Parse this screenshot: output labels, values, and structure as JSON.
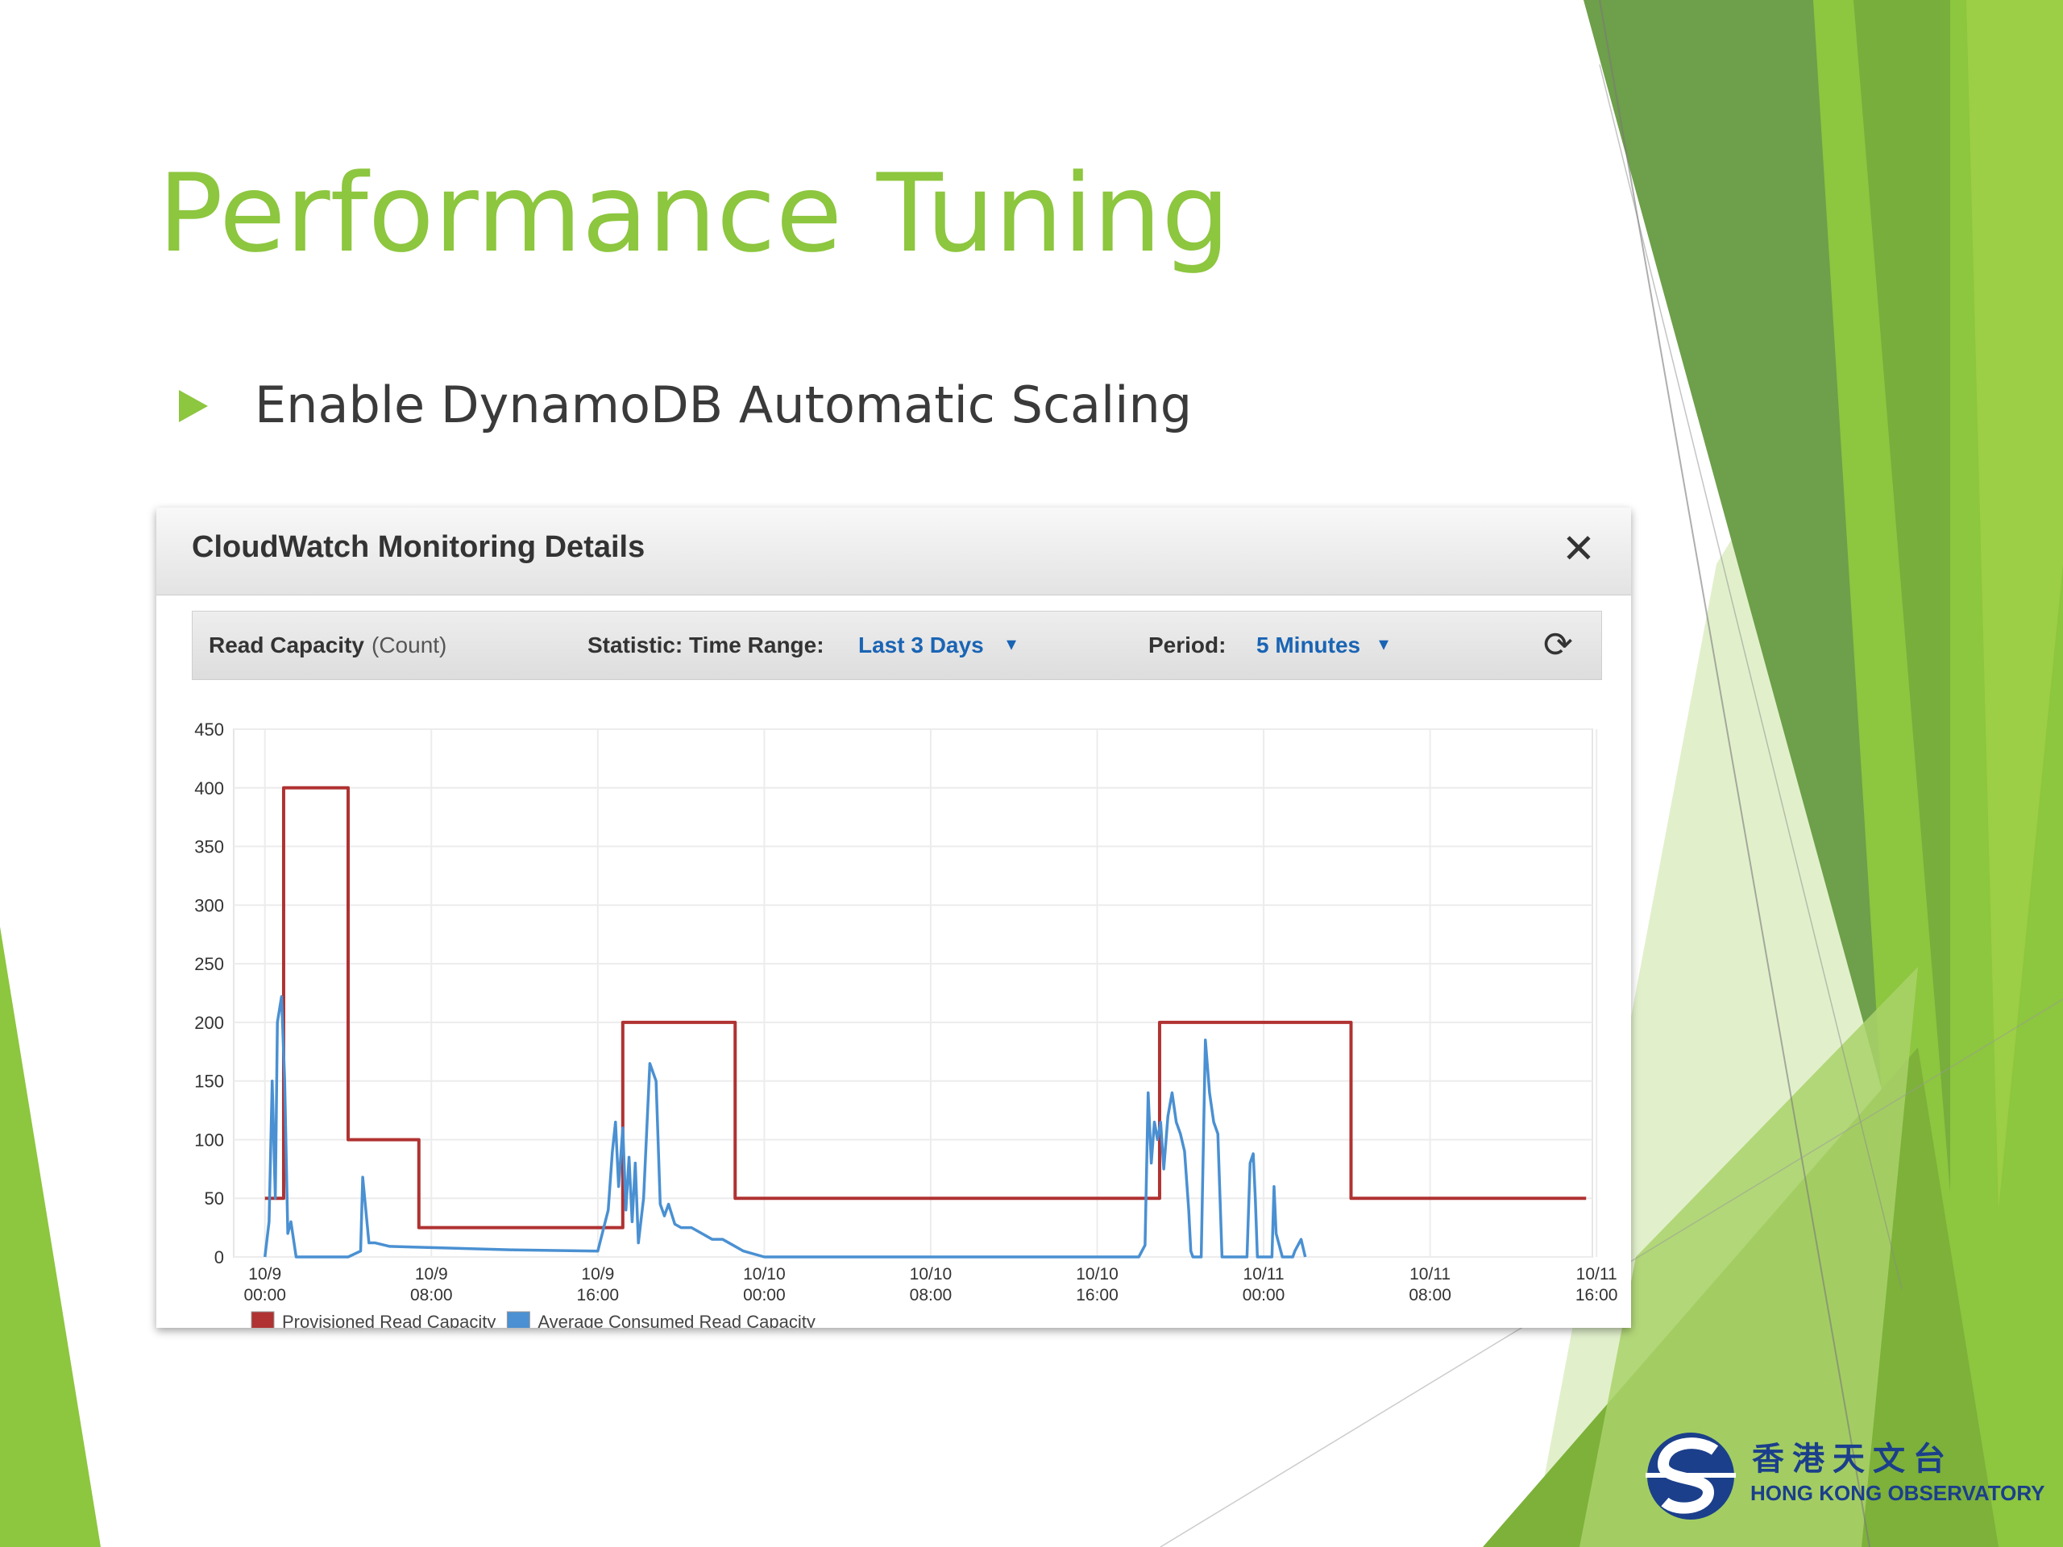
{
  "slide": {
    "title": "Performance Tuning",
    "bullet": "Enable DynamoDB Automatic Scaling"
  },
  "panel": {
    "title": "CloudWatch Monitoring Details",
    "close_icon": "close-icon",
    "toolbar": {
      "metric_label": "Read Capacity",
      "metric_unit": "(Count)",
      "statistic_label": "Statistic: Time Range:",
      "time_range": "Last 3 Days",
      "period_label": "Period:",
      "period": "5 Minutes",
      "dropdown_icon": "chevron-down-icon",
      "refresh_icon": "refresh-icon"
    }
  },
  "chart_data": {
    "type": "line",
    "title": "",
    "xlabel": "",
    "ylabel": "",
    "ylim": [
      0,
      450
    ],
    "yticks": [
      "0",
      "50",
      "100",
      "150",
      "200",
      "250",
      "300",
      "350",
      "400",
      "450"
    ],
    "xlim": [
      -1.5,
      63.8
    ],
    "xticks": [
      {
        "x": 0,
        "line1": "10/9",
        "line2": "00:00"
      },
      {
        "x": 8,
        "line1": "10/9",
        "line2": "08:00"
      },
      {
        "x": 16,
        "line1": "10/9",
        "line2": "16:00"
      },
      {
        "x": 24,
        "line1": "10/10",
        "line2": "00:00"
      },
      {
        "x": 32,
        "line1": "10/10",
        "line2": "08:00"
      },
      {
        "x": 40,
        "line1": "10/10",
        "line2": "16:00"
      },
      {
        "x": 48,
        "line1": "10/11",
        "line2": "00:00"
      },
      {
        "x": 56,
        "line1": "10/11",
        "line2": "08:00"
      },
      {
        "x": 64,
        "line1": "10/11",
        "line2": "16:00"
      }
    ],
    "grid": true,
    "legend_position": "bottom-left",
    "series": [
      {
        "name": "Provisioned Read Capacity",
        "color": "#b03232",
        "step": true,
        "x": [
          0,
          0.6,
          0.9,
          4.0,
          7.4,
          16.6,
          17.2,
          22.6,
          42.6,
          43.0,
          52.2,
          63.5
        ],
        "values": [
          50,
          50,
          400,
          100,
          25,
          25,
          200,
          50,
          50,
          200,
          50,
          50
        ]
      },
      {
        "name": "Average Consumed Read Capacity",
        "color": "#4a90d2",
        "step": false,
        "x": [
          0,
          0.2,
          0.35,
          0.5,
          0.6,
          0.8,
          0.95,
          1.1,
          1.25,
          1.5,
          1.7,
          1.75,
          1.85,
          2.0,
          4.0,
          4.6,
          4.7,
          4.85,
          5.0,
          5.3,
          6.0,
          8.0,
          12.0,
          16.0,
          16.5,
          16.7,
          16.85,
          17.0,
          17.2,
          17.35,
          17.5,
          17.65,
          17.8,
          17.95,
          18.2,
          18.5,
          18.8,
          19.0,
          19.2,
          19.4,
          19.7,
          20.0,
          20.5,
          21.0,
          21.5,
          22.0,
          22.5,
          23.0,
          24.0,
          26.0,
          30.0,
          34.0,
          38.0,
          42.0,
          42.3,
          42.45,
          42.6,
          42.75,
          42.9,
          43.05,
          43.2,
          43.4,
          43.6,
          43.8,
          44.0,
          44.2,
          44.4,
          44.5,
          44.6,
          44.8,
          45.0,
          45.2,
          45.4,
          45.6,
          45.8,
          46.0,
          47.0,
          47.2,
          47.35,
          47.5,
          47.6,
          47.7,
          47.85,
          47.9,
          48.0,
          48.4,
          48.5,
          48.6,
          48.9,
          49.2,
          49.3,
          49.4,
          49.5,
          49.8,
          50.0
        ],
        "values": [
          0,
          30,
          150,
          50,
          200,
          222,
          150,
          20,
          30,
          0,
          0,
          0,
          0,
          0,
          0,
          5,
          68,
          40,
          12,
          12,
          9,
          8,
          6,
          5,
          40,
          90,
          115,
          60,
          110,
          40,
          85,
          30,
          80,
          12,
          50,
          165,
          150,
          45,
          35,
          45,
          28,
          25,
          25,
          20,
          15,
          15,
          10,
          5,
          0,
          0,
          0,
          0,
          0,
          0,
          10,
          140,
          80,
          115,
          100,
          115,
          75,
          120,
          140,
          115,
          105,
          90,
          40,
          5,
          0,
          0,
          0,
          185,
          140,
          115,
          105,
          0,
          0,
          0,
          80,
          88,
          50,
          0,
          0,
          0,
          0,
          0,
          60,
          20,
          0,
          0,
          0,
          0,
          5,
          15,
          0
        ]
      }
    ]
  },
  "logo": {
    "name_zh": "香港天文台",
    "name_en": "HONG KONG OBSERVATORY"
  }
}
